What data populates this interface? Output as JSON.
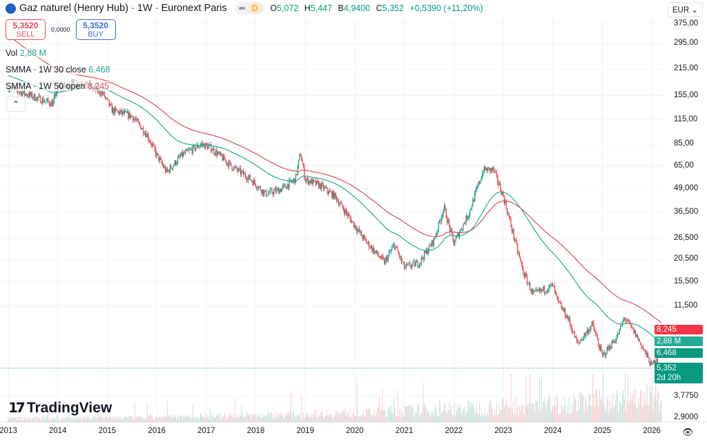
{
  "header": {
    "title": "Gaz naturel (Henry Hub) · 1W · Euronext Paris",
    "badge": "D",
    "ohlc": [
      {
        "k": "O",
        "v": "5,072"
      },
      {
        "k": "H",
        "v": "5,447"
      },
      {
        "k": "B",
        "v": "4,9400"
      },
      {
        "k": "C",
        "v": "5,352"
      }
    ],
    "change": "+0,5390 (+11,20%)"
  },
  "trade": {
    "sell_price": "5,3520",
    "sell_label": "SELL",
    "spread": "0,0000",
    "buy_price": "5,3520",
    "buy_label": "BUY"
  },
  "indicators": {
    "vol_label": "Vol",
    "vol_value": "2,88 M",
    "smma30_label": "SMMA · 1W 30 close",
    "smma30_value": "6,468",
    "smma50_label": "SMMA · 1W 50 open",
    "smma50_value": "8,245"
  },
  "currency": "EUR",
  "price_tags": {
    "smma50": "8,245",
    "volume": "2,88 M",
    "smma30": "6,468",
    "last": "5,352",
    "countdown": "2d 20h"
  },
  "logo_text": "TradingView",
  "colors": {
    "up": "#089981",
    "down": "#f23645",
    "smma30": "#22ab94",
    "smma50": "#e04a59",
    "accent": "#2962ff"
  },
  "chart_data": {
    "type": "candlestick",
    "y_scale": "log",
    "grid": true,
    "y_ticks": [
      "375,00",
      "295,00",
      "215,00",
      "155,00",
      "115,00",
      "85,00",
      "65,00",
      "49,000",
      "36,500",
      "26,500",
      "20,500",
      "15,500",
      "11,500",
      "3,7750",
      "2,9000"
    ],
    "y_tick_values": [
      375,
      295,
      215,
      155,
      115,
      85,
      65,
      49,
      36.5,
      26.5,
      20.5,
      15.5,
      11.5,
      3.775,
      2.9
    ],
    "x_ticks": [
      "2013",
      "2014",
      "2015",
      "2016",
      "2017",
      "2018",
      "2019",
      "2020",
      "2021",
      "2022",
      "2023",
      "2024",
      "2025",
      "2026"
    ],
    "close_path": [
      [
        2013.0,
        171
      ],
      [
        2013.5,
        153
      ],
      [
        2013.9,
        140
      ],
      [
        2014.0,
        171
      ],
      [
        2014.5,
        181
      ],
      [
        2014.9,
        160
      ],
      [
        2015.1,
        129
      ],
      [
        2015.5,
        120
      ],
      [
        2015.8,
        96
      ],
      [
        2016.0,
        74
      ],
      [
        2016.2,
        60
      ],
      [
        2016.5,
        74
      ],
      [
        2016.9,
        85
      ],
      [
        2017.1,
        81
      ],
      [
        2017.5,
        65
      ],
      [
        2017.9,
        55
      ],
      [
        2018.2,
        46
      ],
      [
        2018.5,
        48.6
      ],
      [
        2018.8,
        55
      ],
      [
        2018.9,
        76
      ],
      [
        2019.0,
        55
      ],
      [
        2019.3,
        51
      ],
      [
        2019.6,
        44.6
      ],
      [
        2019.9,
        34
      ],
      [
        2020.2,
        26
      ],
      [
        2020.6,
        19.7
      ],
      [
        2020.8,
        24.6
      ],
      [
        2021.0,
        18.5
      ],
      [
        2021.3,
        19.7
      ],
      [
        2021.6,
        26
      ],
      [
        2021.8,
        39
      ],
      [
        2022.0,
        25
      ],
      [
        2022.3,
        36
      ],
      [
        2022.6,
        62
      ],
      [
        2022.8,
        62
      ],
      [
        2023.0,
        44.6
      ],
      [
        2023.2,
        28
      ],
      [
        2023.4,
        17.6
      ],
      [
        2023.6,
        13.3
      ],
      [
        2024.0,
        14.8
      ],
      [
        2024.1,
        12.1
      ],
      [
        2024.3,
        10
      ],
      [
        2024.5,
        7.2
      ],
      [
        2024.8,
        9.2
      ],
      [
        2025.0,
        6.2
      ],
      [
        2025.3,
        7.9
      ],
      [
        2025.45,
        10
      ],
      [
        2025.7,
        7.9
      ],
      [
        2026.0,
        5.5
      ],
      [
        2026.1,
        6.2
      ],
      [
        2026.15,
        4.3
      ],
      [
        2026.2,
        5.352
      ]
    ],
    "last_price": 5.352,
    "smma30_last": 6.468,
    "smma50_last": 8.245
  }
}
